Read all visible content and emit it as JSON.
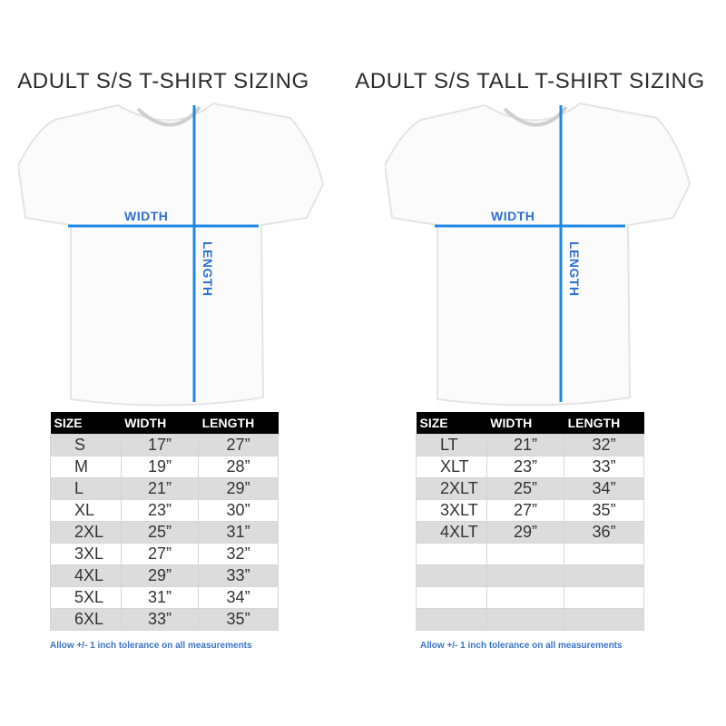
{
  "left": {
    "title": "ADULT S/S T-SHIRT SIZING",
    "width_label": "WIDTH",
    "length_label": "LENGTH",
    "headers": [
      "SIZE",
      "WIDTH",
      "LENGTH"
    ],
    "rows": [
      [
        "S",
        "17”",
        "27”"
      ],
      [
        "M",
        "19”",
        "28”"
      ],
      [
        "L",
        "21”",
        "29”"
      ],
      [
        "XL",
        "23”",
        "30”"
      ],
      [
        "2XL",
        "25”",
        "31”"
      ],
      [
        "3XL",
        "27”",
        "32”"
      ],
      [
        "4XL",
        "29”",
        "33”"
      ],
      [
        "5XL",
        "31”",
        "34”"
      ],
      [
        "6XL",
        "33”",
        "35”"
      ]
    ],
    "note": "Allow +/- 1 inch tolerance on all measurements"
  },
  "right": {
    "title": "ADULT S/S TALL T-SHIRT SIZING",
    "width_label": "WIDTH",
    "length_label": "LENGTH",
    "headers": [
      "SIZE",
      "WIDTH",
      "LENGTH"
    ],
    "rows": [
      [
        "LT",
        "21”",
        "32”"
      ],
      [
        "XLT",
        "23”",
        "33”"
      ],
      [
        "2XLT",
        "25”",
        "34”"
      ],
      [
        "3XLT",
        "27”",
        "35”"
      ],
      [
        "4XLT",
        "29”",
        "36”"
      ],
      [
        "",
        "",
        ""
      ],
      [
        "",
        "",
        ""
      ],
      [
        "",
        "",
        ""
      ],
      [
        "",
        "",
        ""
      ]
    ],
    "note": "Allow +/- 1 inch tolerance on all measurements"
  },
  "colors": {
    "measure_line": "#1e88e5",
    "label": "#2f6fd0",
    "header_bg": "#000000",
    "stripe": "#dcdcdc"
  }
}
